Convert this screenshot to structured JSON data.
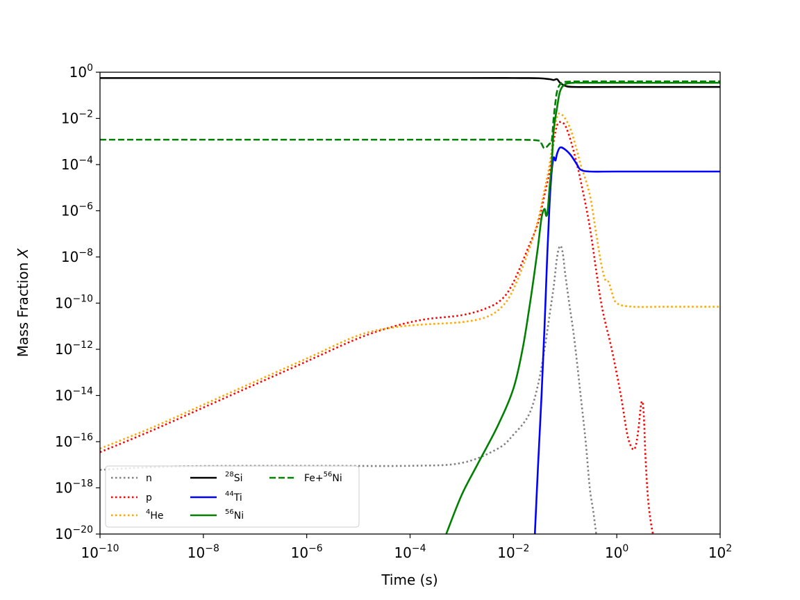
{
  "chart_data": {
    "type": "line",
    "title": "",
    "xlabel": "Time (s)",
    "ylabel_text": "Mass Fraction ",
    "ylabel_var": "X",
    "xscale": "log",
    "yscale": "log",
    "xlim": [
      1e-10,
      100
    ],
    "ylim": [
      1e-20,
      1
    ],
    "x_ticks": [
      {
        "base": "10",
        "exp": "−10",
        "value": 1e-10
      },
      {
        "base": "10",
        "exp": "−8",
        "value": 1e-08
      },
      {
        "base": "10",
        "exp": "−6",
        "value": 1e-06
      },
      {
        "base": "10",
        "exp": "−4",
        "value": 0.0001
      },
      {
        "base": "10",
        "exp": "−2",
        "value": 0.01
      },
      {
        "base": "10",
        "exp": "0",
        "value": 1
      },
      {
        "base": "10",
        "exp": "2",
        "value": 100
      }
    ],
    "y_ticks": [
      {
        "base": "10",
        "exp": "0",
        "value": 1
      },
      {
        "base": "10",
        "exp": "−2",
        "value": 0.01
      },
      {
        "base": "10",
        "exp": "−4",
        "value": 0.0001
      },
      {
        "base": "10",
        "exp": "−6",
        "value": 1e-06
      },
      {
        "base": "10",
        "exp": "−8",
        "value": 1e-08
      },
      {
        "base": "10",
        "exp": "−10",
        "value": 1e-10
      },
      {
        "base": "10",
        "exp": "−12",
        "value": 1e-12
      },
      {
        "base": "10",
        "exp": "−14",
        "value": 1e-14
      },
      {
        "base": "10",
        "exp": "−16",
        "value": 1e-16
      },
      {
        "base": "10",
        "exp": "−18",
        "value": 1e-18
      },
      {
        "base": "10",
        "exp": "−20",
        "value": 1e-20
      }
    ],
    "grid": false,
    "legend_position": "lower-left",
    "legend_columns": 3,
    "series": [
      {
        "label_sup": "",
        "label_main": "n",
        "color": "#808080",
        "style": "dotted",
        "points": [
          [
            1e-10,
            6e-18
          ],
          [
            3e-09,
            8.5e-18
          ],
          [
            1e-06,
            9e-18
          ],
          [
            0.0001,
            9e-18
          ],
          [
            0.001,
            1.2e-17
          ],
          [
            0.005,
            5e-17
          ],
          [
            0.01,
            2e-16
          ],
          [
            0.02,
            1.5e-15
          ],
          [
            0.03,
            3e-14
          ],
          [
            0.04,
            1e-12
          ],
          [
            0.05,
            3e-11
          ],
          [
            0.06,
            5e-10
          ],
          [
            0.07,
            1e-08
          ],
          [
            0.08,
            3e-08
          ],
          [
            0.09,
            1.5e-08
          ],
          [
            0.1,
            2e-09
          ],
          [
            0.12,
            1e-10
          ],
          [
            0.15,
            3e-12
          ],
          [
            0.2,
            1e-14
          ],
          [
            0.25,
            1e-16
          ],
          [
            0.3,
            1e-18
          ],
          [
            0.35,
            1e-19
          ],
          [
            0.4,
            1e-20
          ]
        ]
      },
      {
        "label_sup": "",
        "label_main": "p",
        "color": "#ff0000",
        "style": "dotted",
        "points": [
          [
            1e-10,
            3.5e-17
          ],
          [
            1e-09,
            3e-16
          ],
          [
            1e-08,
            3e-15
          ],
          [
            1e-07,
            3e-14
          ],
          [
            1e-06,
            3e-13
          ],
          [
            1e-05,
            3e-12
          ],
          [
            5e-05,
            1e-11
          ],
          [
            0.0002,
            2e-11
          ],
          [
            0.001,
            3e-11
          ],
          [
            0.003,
            6e-11
          ],
          [
            0.006,
            1.5e-10
          ],
          [
            0.01,
            8e-10
          ],
          [
            0.02,
            3e-08
          ],
          [
            0.03,
            3e-07
          ],
          [
            0.04,
            5e-06
          ],
          [
            0.05,
            5e-05
          ],
          [
            0.06,
            0.001
          ],
          [
            0.07,
            0.005
          ],
          [
            0.08,
            0.007
          ],
          [
            0.1,
            0.005
          ],
          [
            0.13,
            0.001
          ],
          [
            0.17,
            0.0001
          ],
          [
            0.2,
            2e-05
          ],
          [
            0.3,
            2e-07
          ],
          [
            0.5,
            1e-10
          ],
          [
            0.8,
            1e-12
          ],
          [
            1.2,
            1e-14
          ],
          [
            1.6,
            2e-16
          ],
          [
            2,
            5e-17
          ],
          [
            2.3,
            6e-17
          ],
          [
            2.6,
            3e-16
          ],
          [
            3,
            5e-15
          ],
          [
            3.3,
            2e-15
          ],
          [
            3.6,
            2e-17
          ],
          [
            4,
            4e-19
          ],
          [
            4.5,
            4e-20
          ],
          [
            5,
            1e-20
          ]
        ]
      },
      {
        "label_sup": "4",
        "label_main": "He",
        "color": "#ffa500",
        "style": "dotted",
        "points": [
          [
            1e-10,
            5e-17
          ],
          [
            1e-09,
            4e-16
          ],
          [
            1e-08,
            4e-15
          ],
          [
            1e-07,
            4e-14
          ],
          [
            1e-06,
            4e-13
          ],
          [
            1e-05,
            4e-12
          ],
          [
            5e-05,
            9e-12
          ],
          [
            0.0002,
            1.2e-11
          ],
          [
            0.001,
            1.5e-11
          ],
          [
            0.003,
            2.5e-11
          ],
          [
            0.006,
            7e-11
          ],
          [
            0.01,
            4e-10
          ],
          [
            0.02,
            2e-08
          ],
          [
            0.03,
            4e-07
          ],
          [
            0.04,
            8e-06
          ],
          [
            0.05,
            0.0001
          ],
          [
            0.06,
            0.002
          ],
          [
            0.07,
            0.012
          ],
          [
            0.08,
            0.016
          ],
          [
            0.1,
            0.01
          ],
          [
            0.13,
            0.003
          ],
          [
            0.17,
            0.0004
          ],
          [
            0.2,
            0.0001
          ],
          [
            0.3,
            5e-06
          ],
          [
            0.4,
            1e-07
          ],
          [
            0.5,
            5e-09
          ],
          [
            0.6,
            1e-09
          ],
          [
            0.7,
            8e-10
          ],
          [
            0.8,
            3e-10
          ],
          [
            1,
            1e-10
          ],
          [
            2,
            7e-11
          ],
          [
            10,
            7e-11
          ],
          [
            100,
            7e-11
          ]
        ]
      },
      {
        "label_sup": "28",
        "label_main": "Si",
        "color": "#000000",
        "style": "solid",
        "points": [
          [
            1e-10,
            0.56
          ],
          [
            1e-06,
            0.56
          ],
          [
            0.001,
            0.56
          ],
          [
            0.01,
            0.56
          ],
          [
            0.03,
            0.55
          ],
          [
            0.05,
            0.5
          ],
          [
            0.06,
            0.46
          ],
          [
            0.07,
            0.5
          ],
          [
            0.08,
            0.35
          ],
          [
            0.1,
            0.26
          ],
          [
            0.15,
            0.23
          ],
          [
            1,
            0.23
          ],
          [
            100,
            0.23
          ]
        ]
      },
      {
        "label_sup": "44",
        "label_main": "Ti",
        "color": "#0000ff",
        "style": "solid",
        "points": [
          [
            0.026,
            1e-20
          ],
          [
            0.03,
            1e-17
          ],
          [
            0.035,
            1e-14
          ],
          [
            0.04,
            1e-11
          ],
          [
            0.045,
            1e-08
          ],
          [
            0.05,
            2e-06
          ],
          [
            0.055,
            5e-05
          ],
          [
            0.06,
            0.0002
          ],
          [
            0.065,
            0.00015
          ],
          [
            0.07,
            0.0003
          ],
          [
            0.08,
            0.00055
          ],
          [
            0.1,
            0.00045
          ],
          [
            0.13,
            0.00025
          ],
          [
            0.17,
            0.0001
          ],
          [
            0.2,
            6e-05
          ],
          [
            0.3,
            5e-05
          ],
          [
            1,
            5e-05
          ],
          [
            100,
            5e-05
          ]
        ]
      },
      {
        "label_sup": "56",
        "label_main": "Ni",
        "color": "#008000",
        "style": "solid",
        "points": [
          [
            0.0005,
            1e-20
          ],
          [
            0.001,
            5e-19
          ],
          [
            0.002,
            1e-17
          ],
          [
            0.005,
            5e-16
          ],
          [
            0.01,
            2e-14
          ],
          [
            0.015,
            1e-12
          ],
          [
            0.02,
            5e-11
          ],
          [
            0.025,
            1.5e-09
          ],
          [
            0.03,
            3e-08
          ],
          [
            0.035,
            5e-07
          ],
          [
            0.04,
            1.2e-06
          ],
          [
            0.043,
            6e-07
          ],
          [
            0.046,
            1e-06
          ],
          [
            0.05,
            1e-05
          ],
          [
            0.055,
            0.0001
          ],
          [
            0.06,
            0.003
          ],
          [
            0.07,
            0.03
          ],
          [
            0.08,
            0.15
          ],
          [
            0.1,
            0.3
          ],
          [
            0.15,
            0.35
          ],
          [
            0.2,
            0.35
          ],
          [
            1,
            0.35
          ],
          [
            100,
            0.35
          ]
        ]
      },
      {
        "label_sup": "56",
        "label_main": "Fe+",
        "color": "#008000",
        "style": "dashed",
        "points": [
          [
            1e-10,
            0.0012
          ],
          [
            1e-06,
            0.0012
          ],
          [
            0.001,
            0.0012
          ],
          [
            0.01,
            0.0012
          ],
          [
            0.03,
            0.0011
          ],
          [
            0.035,
            0.0008
          ],
          [
            0.04,
            0.0005
          ],
          [
            0.05,
            0.0008
          ],
          [
            0.055,
            0.001
          ],
          [
            0.06,
            0.01
          ],
          [
            0.065,
            0.05
          ],
          [
            0.07,
            0.15
          ],
          [
            0.08,
            0.3
          ],
          [
            0.1,
            0.38
          ],
          [
            0.2,
            0.4
          ],
          [
            1,
            0.4
          ],
          [
            100,
            0.4
          ]
        ]
      }
    ]
  }
}
